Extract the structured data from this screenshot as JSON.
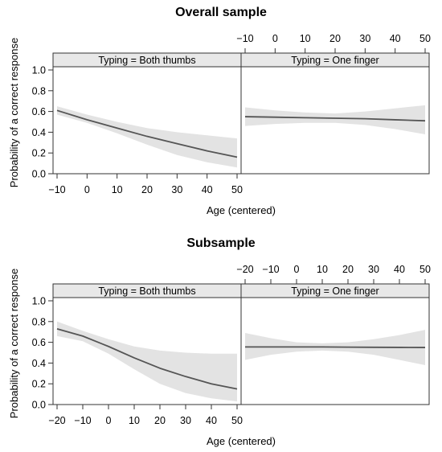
{
  "chart_data": [
    {
      "type": "line",
      "title": "Overall sample",
      "xlabel": "Age (centered)",
      "ylabel": "Probability of a correct response",
      "ylim": [
        0,
        1.0
      ],
      "yticks": [
        "0.0",
        "0.2",
        "0.4",
        "0.6",
        "0.8",
        "1.0"
      ],
      "grid": false,
      "panels": [
        {
          "strip": "Typing = Both thumbs",
          "xlim": [
            -10,
            50
          ],
          "xticks": [
            "−10",
            "0",
            "10",
            "20",
            "30",
            "40",
            "50"
          ],
          "tick_side": "bottom",
          "series": [
            {
              "x": [
                -10,
                0,
                10,
                20,
                30,
                40,
                50
              ],
              "y": [
                0.61,
                0.52,
                0.44,
                0.36,
                0.29,
                0.22,
                0.16
              ],
              "lower": [
                0.57,
                0.49,
                0.39,
                0.28,
                0.18,
                0.11,
                0.06
              ],
              "upper": [
                0.65,
                0.57,
                0.5,
                0.44,
                0.4,
                0.37,
                0.34
              ]
            }
          ]
        },
        {
          "strip": "Typing = One finger",
          "xlim": [
            -10,
            50
          ],
          "xticks": [
            "−10",
            "0",
            "10",
            "20",
            "30",
            "40",
            "50"
          ],
          "tick_side": "top",
          "series": [
            {
              "x": [
                -10,
                0,
                10,
                20,
                30,
                40,
                50
              ],
              "y": [
                0.55,
                0.545,
                0.54,
                0.535,
                0.53,
                0.52,
                0.51
              ],
              "lower": [
                0.46,
                0.48,
                0.49,
                0.49,
                0.47,
                0.43,
                0.38
              ],
              "upper": [
                0.64,
                0.61,
                0.59,
                0.58,
                0.6,
                0.63,
                0.66
              ]
            }
          ]
        }
      ]
    },
    {
      "type": "line",
      "title": "Subsample",
      "xlabel": "Age (centered)",
      "ylabel": "Probability of a correct response",
      "ylim": [
        0,
        1.0
      ],
      "yticks": [
        "0.0",
        "0.2",
        "0.4",
        "0.6",
        "0.8",
        "1.0"
      ],
      "grid": false,
      "panels": [
        {
          "strip": "Typing = Both thumbs",
          "xlim": [
            -20,
            50
          ],
          "xticks": [
            "−20",
            "−10",
            "0",
            "10",
            "20",
            "30",
            "40",
            "50"
          ],
          "tick_side": "bottom",
          "series": [
            {
              "x": [
                -20,
                -10,
                0,
                10,
                20,
                30,
                40,
                50
              ],
              "y": [
                0.73,
                0.66,
                0.56,
                0.45,
                0.35,
                0.27,
                0.2,
                0.15
              ],
              "lower": [
                0.66,
                0.61,
                0.49,
                0.34,
                0.2,
                0.11,
                0.06,
                0.03
              ],
              "upper": [
                0.8,
                0.71,
                0.63,
                0.56,
                0.52,
                0.5,
                0.49,
                0.49
              ]
            }
          ]
        },
        {
          "strip": "Typing = One finger",
          "xlim": [
            -20,
            50
          ],
          "xticks": [
            "−20",
            "−10",
            "0",
            "10",
            "20",
            "30",
            "40",
            "50"
          ],
          "tick_side": "top",
          "series": [
            {
              "x": [
                -20,
                -10,
                0,
                10,
                20,
                30,
                40,
                50
              ],
              "y": [
                0.555,
                0.555,
                0.555,
                0.555,
                0.553,
                0.552,
                0.551,
                0.55
              ],
              "lower": [
                0.43,
                0.48,
                0.51,
                0.52,
                0.51,
                0.48,
                0.43,
                0.38
              ],
              "upper": [
                0.69,
                0.64,
                0.6,
                0.59,
                0.6,
                0.63,
                0.67,
                0.72
              ]
            }
          ]
        }
      ]
    }
  ]
}
